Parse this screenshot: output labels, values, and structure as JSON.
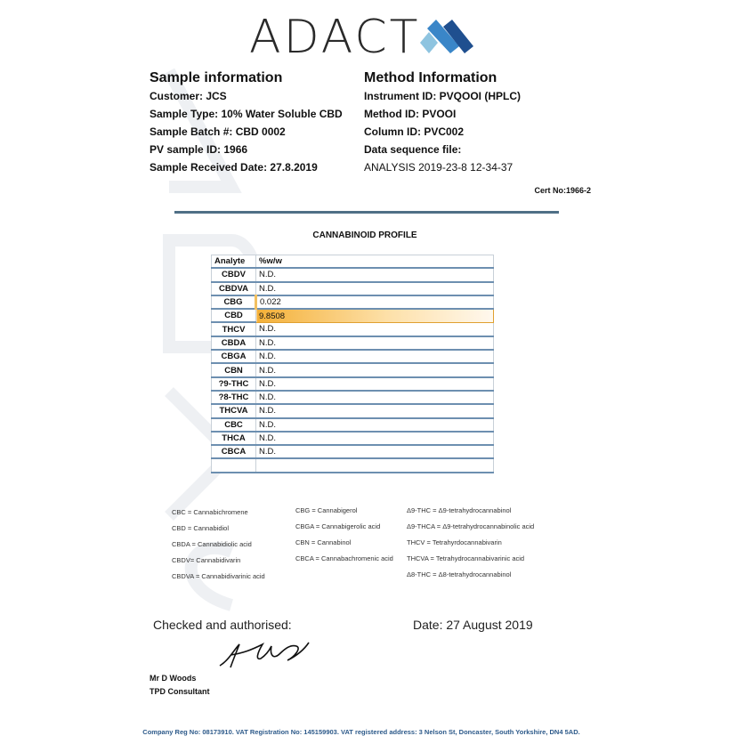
{
  "brand": {
    "name": "ADACT",
    "colors": {
      "dark_blue": "#1f4f8f",
      "mid_blue": "#3a86c8",
      "light_blue": "#8ec4e0"
    }
  },
  "sample_info": {
    "title": "Sample information",
    "lines": [
      "Customer: JCS",
      "Sample Type: 10% Water Soluble CBD",
      "Sample Batch #: CBD 0002",
      "PV sample ID: 1966",
      "Sample Received Date: 27.8.2019"
    ]
  },
  "method_info": {
    "title": "Method Information",
    "lines": [
      "Instrument ID: PVQOOI (HPLC)",
      "Method ID: PVOOI",
      "Column ID: PVC002",
      "Data sequence file:",
      "ANALYSIS 2019-23-8 12-34-37"
    ]
  },
  "cert_no": "Cert No:1966-2",
  "profile": {
    "title": "CANNABINOID  PROFILE",
    "headers": [
      "Analyte",
      "%w/w"
    ],
    "rows": [
      [
        "CBDV",
        "N.D."
      ],
      [
        "CBDVA",
        "N.D."
      ],
      [
        "CBG",
        "0.022"
      ],
      [
        "CBD",
        "9.8508"
      ],
      [
        "THCV",
        "N.D."
      ],
      [
        "CBDA",
        "N.D."
      ],
      [
        "CBGA",
        "N.D."
      ],
      [
        "CBN",
        "N.D."
      ],
      [
        "?9-THC",
        "N.D."
      ],
      [
        "?8-THC",
        "N.D."
      ],
      [
        "THCVA",
        "N.D."
      ],
      [
        "CBC",
        "N.D."
      ],
      [
        "THCA",
        "N.D."
      ],
      [
        "CBCA",
        "N.D."
      ],
      [
        "",
        ""
      ]
    ],
    "highlight_color": "#f4b038"
  },
  "legend": {
    "col1": [
      "CBC = Cannabichromene",
      "CBD = Cannabidiol",
      "CBDA = Cannabidiolic acid",
      "CBDV= Cannabidivarin",
      "CBDVA = Cannabidivarinic acid"
    ],
    "col2": [
      "CBG = Cannabigerol",
      "CBGA = Cannabigerolic acid",
      "CBN = Cannabinol",
      "CBCA = Cannabachromenic acid"
    ],
    "col3": [
      "Δ9-THC = Δ9-tetrahydrocannabinol",
      "Δ9-THCA  = Δ9-tetrahydrocannabinolic acid",
      "THCV = Tetrahyrdocannabivarin",
      "THCVA  = Tetrahydrocannabivarinic acid",
      "Δ8-THC = Δ8-tetrahydrocannabinol"
    ]
  },
  "authorisation": {
    "checked_label": "Checked and authorised:",
    "date": "Date: 27 August 2019",
    "name": "Mr D Woods",
    "role": "TPD Consultant"
  },
  "footer": "Company Reg No: 08173910. VAT Registration No: 145159903. VAT registered address: 3 Nelson St, Doncaster, South Yorkshire, DN4 5AD."
}
